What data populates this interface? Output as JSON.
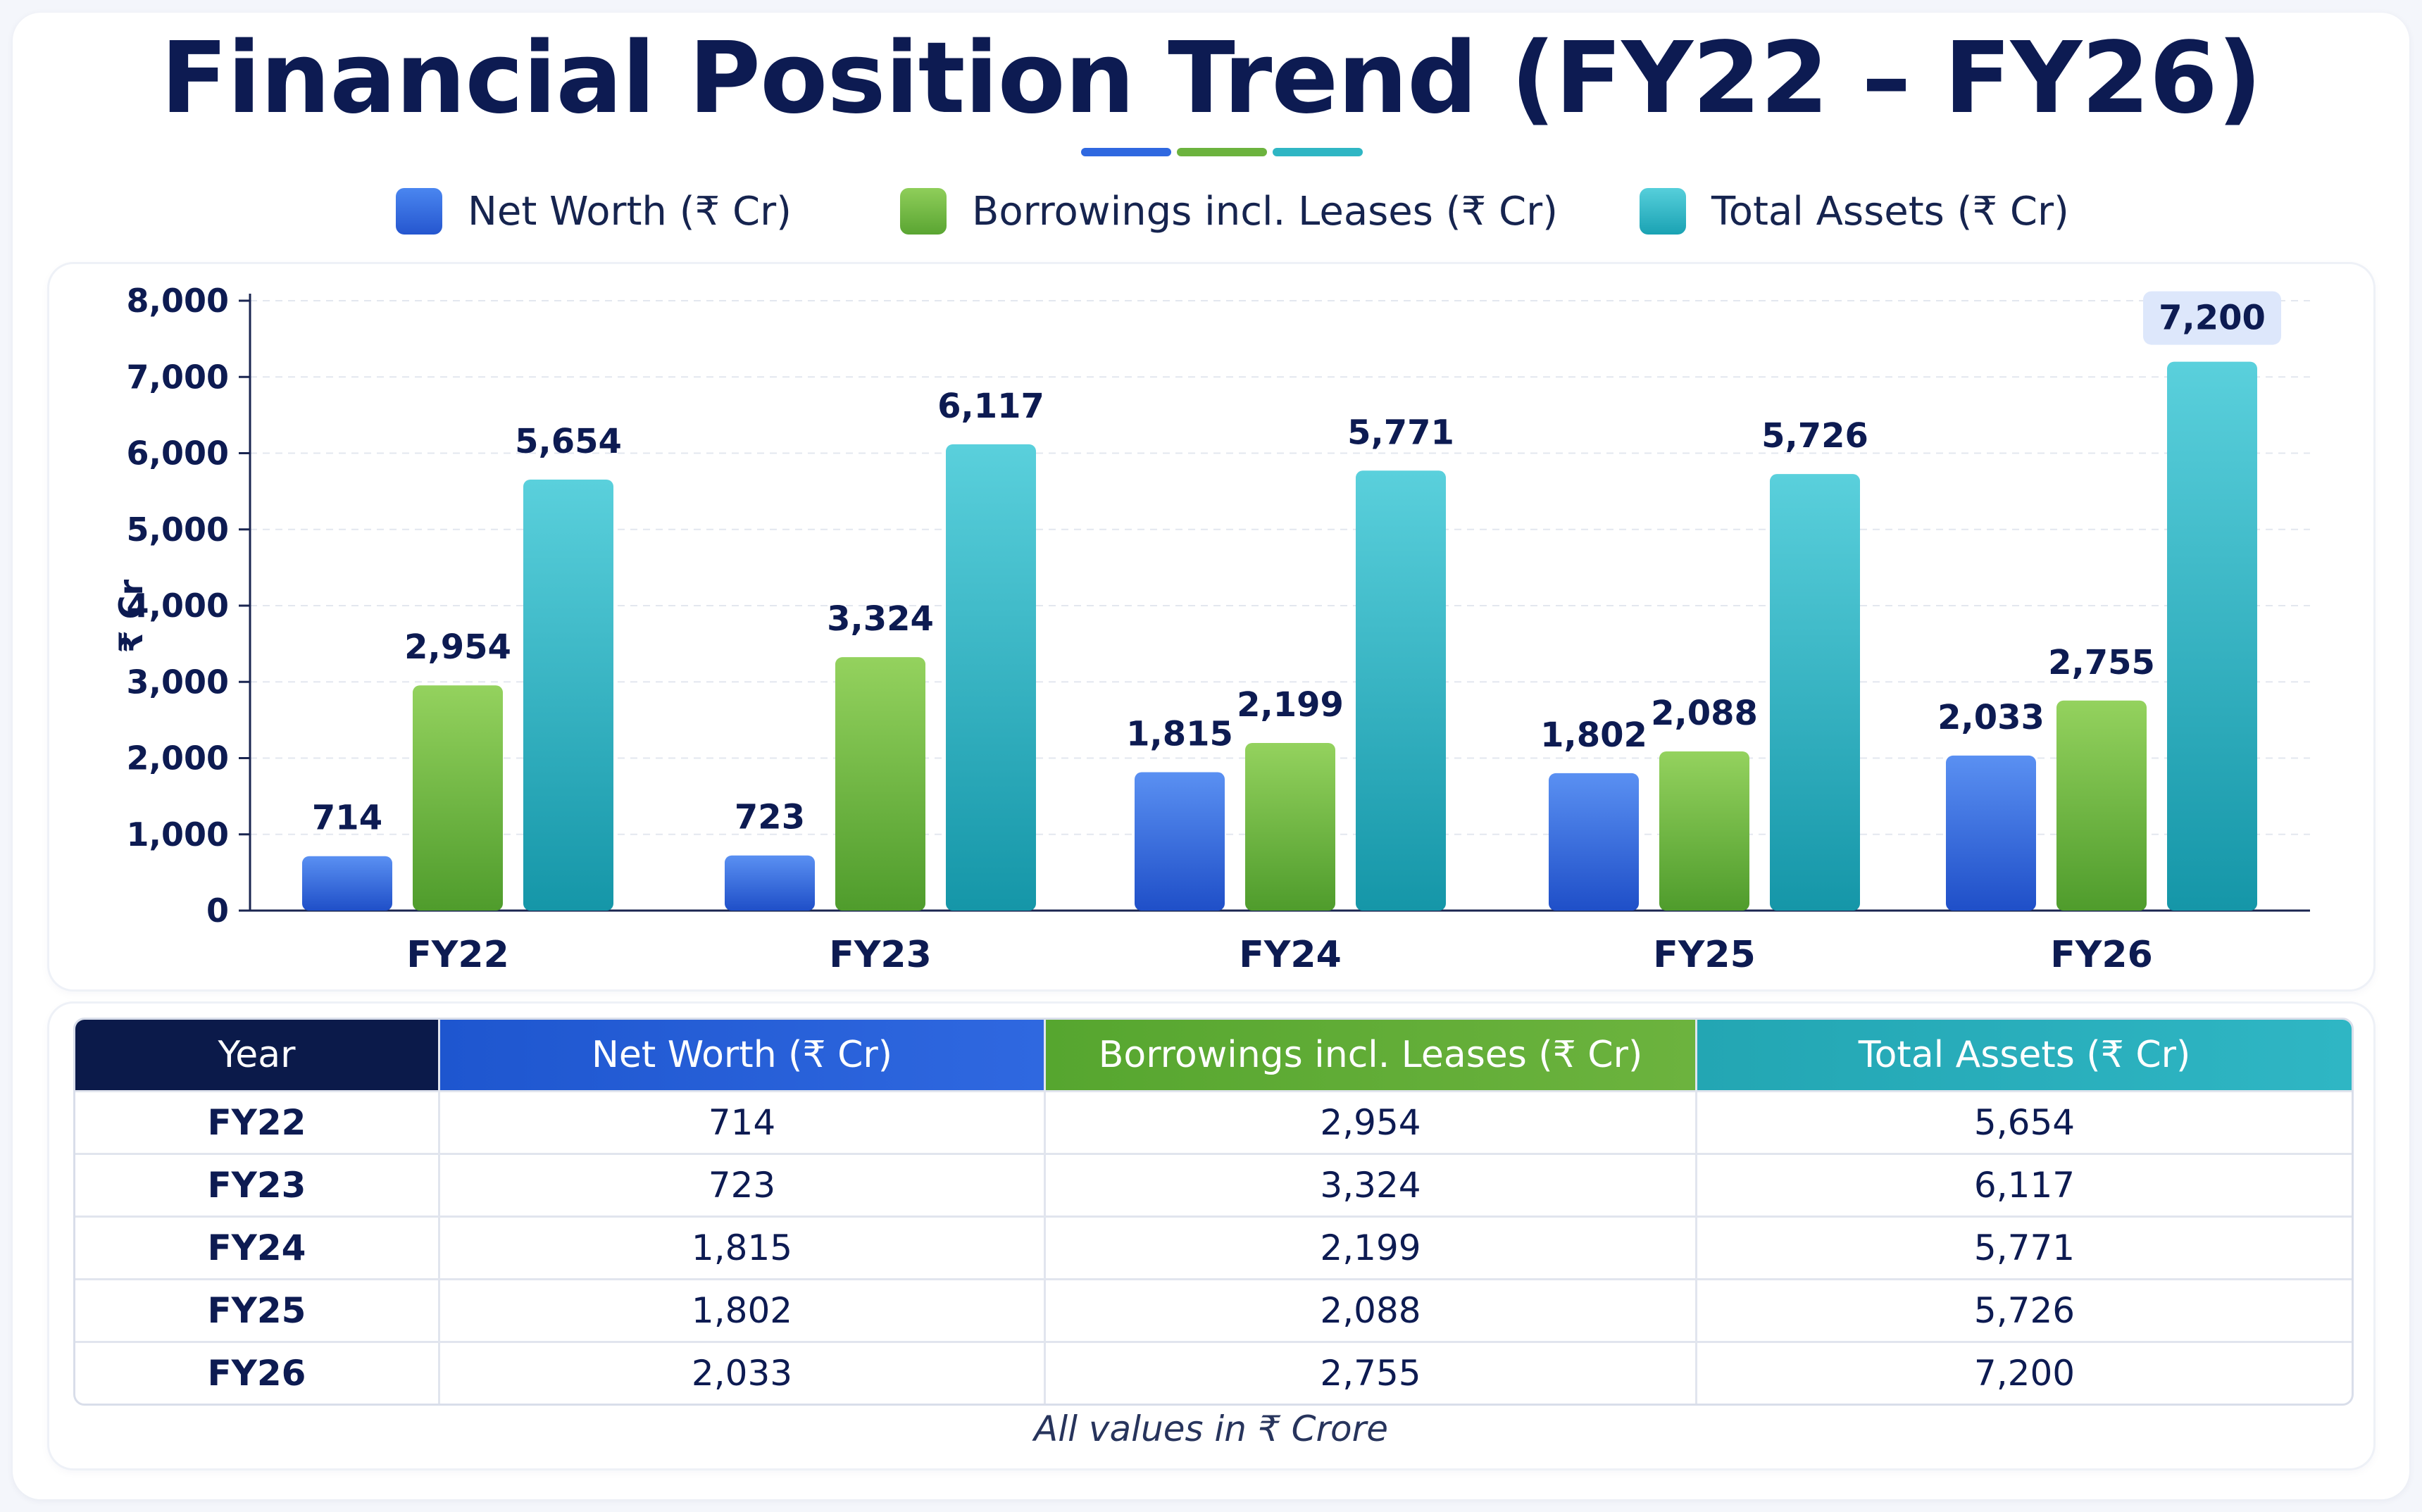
{
  "title": "Financial Position Trend (FY22 – FY26)",
  "colors": {
    "net_worth": "#2f68e0",
    "borrowings": "#6cb33e",
    "total_assets": "#2fb6c4",
    "title": "#0d1b52"
  },
  "legend": [
    {
      "label": "Net Worth (₹ Cr)",
      "color": "#2f68e0"
    },
    {
      "label": "Borrowings incl. Leases (₹ Cr)",
      "color": "#6cb33e"
    },
    {
      "label": "Total Assets (₹ Cr)",
      "color": "#2fb6c4"
    }
  ],
  "chart_data": {
    "type": "bar",
    "title": "Financial Position Trend (FY22 – FY26)",
    "xlabel": "",
    "ylabel": "₹ Cr",
    "ylim": [
      0,
      8000
    ],
    "yticks": [
      "0",
      "1,000",
      "2,000",
      "3,000",
      "4,000",
      "5,000",
      "6,000",
      "7,000",
      "8,000"
    ],
    "grid": true,
    "legend_position": "top",
    "categories": [
      "FY22",
      "FY23",
      "FY24",
      "FY25",
      "FY26"
    ],
    "series": [
      {
        "name": "Net Worth (₹ Cr)",
        "values": [
          714,
          723,
          1815,
          1802,
          2033
        ],
        "labels": [
          "714",
          "723",
          "1,815",
          "1,802",
          "2,033"
        ]
      },
      {
        "name": "Borrowings incl. Leases (₹ Cr)",
        "values": [
          2954,
          3324,
          2199,
          2088,
          2755
        ],
        "labels": [
          "2,954",
          "3,324",
          "2,199",
          "2,088",
          "2,755"
        ]
      },
      {
        "name": "Total Assets (₹ Cr)",
        "values": [
          5654,
          6117,
          5771,
          5726,
          7200
        ],
        "labels": [
          "5,654",
          "6,117",
          "5,771",
          "5,726",
          "7,200"
        ]
      }
    ],
    "highlight": {
      "series": 2,
      "index": 4
    }
  },
  "table": {
    "headers": [
      "Year",
      "Net Worth (₹ Cr)",
      "Borrowings incl. Leases (₹ Cr)",
      "Total Assets (₹ Cr)"
    ],
    "rows": [
      [
        "FY22",
        "714",
        "2,954",
        "5,654"
      ],
      [
        "FY23",
        "723",
        "3,324",
        "6,117"
      ],
      [
        "FY24",
        "1,815",
        "2,199",
        "5,771"
      ],
      [
        "FY25",
        "1,802",
        "2,088",
        "5,726"
      ],
      [
        "FY26",
        "2,033",
        "2,755",
        "7,200"
      ]
    ]
  },
  "footnote": "All values in ₹ Crore"
}
